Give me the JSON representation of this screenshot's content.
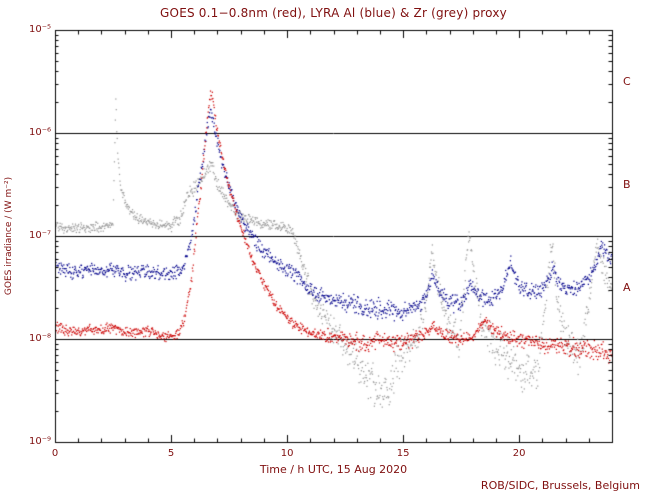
{
  "credit": "ROB/SIDC, Brussels, Belgium",
  "colors": {
    "text": "#801010",
    "frame": "#000000",
    "background": "#ffffff",
    "goes_red": "#cc0000",
    "lyra_al_blue": "#00008b",
    "lyra_zr_grey": "#9b9b9b"
  },
  "chart_data": {
    "type": "scatter",
    "title": "GOES 0.1−0.8nm (red), LYRA Al (blue) & Zr (grey) proxy",
    "xlabel": "Time / h UTC, 15 Aug 2020",
    "ylabel": "GOES irradiance / (W m⁻²)",
    "x_range": [
      0,
      24
    ],
    "x_major_ticks": [
      0,
      5,
      10,
      15,
      20
    ],
    "x_minor_step_hours": 1,
    "y_log_range": [
      -9,
      -5
    ],
    "y_ticks": [
      {
        "exp": -5,
        "label": "10⁻⁵"
      },
      {
        "exp": -6,
        "label": "10⁻⁶"
      },
      {
        "exp": -7,
        "label": "10⁻⁷"
      },
      {
        "exp": -8,
        "label": "10⁻⁸"
      },
      {
        "exp": -9,
        "label": "10⁻⁹"
      }
    ],
    "class_lines_exponents": [
      -6,
      -7,
      -8
    ],
    "class_labels": [
      {
        "label": "C",
        "center_exp": -5.5
      },
      {
        "label": "B",
        "center_exp": -6.5
      },
      {
        "label": "A",
        "center_exp": -7.5
      }
    ],
    "grid": "off",
    "legend_position": "none",
    "sample_step_hours": 0.02,
    "series": [
      {
        "name": "GOES 0.1-0.8nm",
        "color": "#cc0000",
        "default_noise_dex": 0.05,
        "points": [
          [
            0,
            1.3e-08
          ],
          [
            0.5,
            1.2e-08
          ],
          [
            1,
            1.15e-08
          ],
          [
            1.5,
            1.25e-08
          ],
          [
            2,
            1.2e-08
          ],
          [
            2.5,
            1.3e-08
          ],
          [
            3,
            1.2e-08
          ],
          [
            3.5,
            1.15e-08
          ],
          [
            4,
            1.2e-08
          ],
          [
            4.5,
            1.1e-08
          ],
          [
            5,
            1.05e-08
          ],
          [
            5.3,
            1.1e-08
          ],
          [
            5.6,
            1.6e-08
          ],
          [
            5.9,
            4e-08
          ],
          [
            6.1,
            1.2e-07
          ],
          [
            6.35,
            4e-07
          ],
          [
            6.55,
            1.3e-06
          ],
          [
            6.7,
            2.4e-06
          ],
          [
            6.8,
            2.2e-06
          ],
          [
            6.95,
            1.2e-06
          ],
          [
            7.2,
            6e-07
          ],
          [
            7.5,
            3e-07
          ],
          [
            7.8,
            1.7e-07
          ],
          [
            8.1,
            1.05e-07
          ],
          [
            8.5,
            6e-08
          ],
          [
            9,
            3.5e-08
          ],
          [
            9.5,
            2.2e-08
          ],
          [
            10,
            1.6e-08
          ],
          [
            10.5,
            1.3e-08
          ],
          [
            11,
            1.15e-08
          ],
          [
            11.5,
            1.1e-08
          ],
          [
            12,
            1.05e-08,
            0.07
          ],
          [
            12.5,
            1e-08,
            0.07
          ],
          [
            13,
            9.5e-09,
            0.08
          ],
          [
            13.5,
            9e-09,
            0.08
          ],
          [
            14,
            1e-08,
            0.08
          ],
          [
            14.5,
            9e-09,
            0.08
          ],
          [
            15,
            9.5e-09,
            0.08
          ],
          [
            15.5,
            1e-08,
            0.07
          ],
          [
            16,
            1.15e-08
          ],
          [
            16.3,
            1.35e-08
          ],
          [
            16.7,
            1.1e-08
          ],
          [
            17,
            1.05e-08,
            0.07
          ],
          [
            17.5,
            1e-08,
            0.07
          ],
          [
            18,
            1.05e-08
          ],
          [
            18.5,
            1.5e-08
          ],
          [
            18.8,
            1.3e-08
          ],
          [
            19,
            1.2e-08
          ],
          [
            19.5,
            1.05e-08,
            0.07
          ],
          [
            20,
            1e-08,
            0.07
          ],
          [
            20.5,
            9.5e-09,
            0.08
          ],
          [
            21,
            9e-09,
            0.08
          ],
          [
            21.5,
            8.5e-09,
            0.08
          ],
          [
            22,
            8.5e-09,
            0.09
          ],
          [
            22.5,
            8e-09,
            0.09
          ],
          [
            23,
            8e-09,
            0.09
          ],
          [
            23.5,
            7.5e-09,
            0.09
          ],
          [
            23.95,
            7e-09,
            0.09
          ]
        ]
      },
      {
        "name": "LYRA Al proxy",
        "color": "#00008b",
        "default_noise_dex": 0.07,
        "points": [
          [
            0,
            5e-08
          ],
          [
            0.5,
            4.6e-08
          ],
          [
            1,
            4.4e-08
          ],
          [
            1.5,
            4.8e-08
          ],
          [
            2,
            4.5e-08
          ],
          [
            2.5,
            4.7e-08
          ],
          [
            3,
            4.3e-08
          ],
          [
            3.5,
            4.4e-08
          ],
          [
            4,
            4.6e-08
          ],
          [
            4.5,
            4.3e-08
          ],
          [
            5,
            4.2e-08
          ],
          [
            5.3,
            4.4e-08
          ],
          [
            5.6,
            5.5e-08
          ],
          [
            5.9,
            1e-07
          ],
          [
            6.1,
            2.2e-07
          ],
          [
            6.35,
            5e-07
          ],
          [
            6.55,
            1.1e-06
          ],
          [
            6.7,
            1.7e-06
          ],
          [
            6.8,
            1.5e-06
          ],
          [
            6.95,
            9e-07
          ],
          [
            7.2,
            5e-07
          ],
          [
            7.5,
            3e-07
          ],
          [
            7.8,
            2e-07
          ],
          [
            8.1,
            1.4e-07
          ],
          [
            8.5,
            9.5e-08
          ],
          [
            9,
            7e-08
          ],
          [
            9.5,
            5.5e-08
          ],
          [
            10,
            4.8e-08
          ],
          [
            10.4,
            4.2e-08
          ],
          [
            10.8,
            3.2e-08
          ],
          [
            11.2,
            2.8e-08
          ],
          [
            11.8,
            2.5e-08
          ],
          [
            12.4,
            2.3e-08,
            0.09
          ],
          [
            13,
            2.1e-08,
            0.09
          ],
          [
            13.6,
            2e-08,
            0.1
          ],
          [
            14.2,
            1.9e-08,
            0.1
          ],
          [
            14.8,
            1.8e-08,
            0.1
          ],
          [
            15.4,
            2e-08,
            0.09
          ],
          [
            16,
            2.5e-08
          ],
          [
            16.25,
            4.5e-08
          ],
          [
            16.5,
            3e-08
          ],
          [
            17,
            2.3e-08,
            0.09
          ],
          [
            17.5,
            2.2e-08,
            0.09
          ],
          [
            17.9,
            3.5e-08
          ],
          [
            18.2,
            2.6e-08
          ],
          [
            18.6,
            2.4e-08,
            0.09
          ],
          [
            19.2,
            2.8e-08
          ],
          [
            19.65,
            5.5e-08
          ],
          [
            19.9,
            3.5e-08
          ],
          [
            20.4,
            2.9e-08,
            0.09
          ],
          [
            21,
            3e-08
          ],
          [
            21.45,
            5e-08
          ],
          [
            21.8,
            3.2e-08
          ],
          [
            22.3,
            3e-08,
            0.09
          ],
          [
            22.8,
            3.5e-08
          ],
          [
            23.2,
            4.5e-08
          ],
          [
            23.55,
            8e-08
          ],
          [
            23.8,
            6.5e-08
          ],
          [
            23.95,
            6e-08
          ]
        ]
      },
      {
        "name": "LYRA Zr proxy",
        "color": "#9b9b9b",
        "default_noise_dex": 0.09,
        "points": [
          [
            0,
            1.25e-07,
            0.05
          ],
          [
            0.5,
            1.2e-07,
            0.05
          ],
          [
            1,
            1.18e-07,
            0.05
          ],
          [
            1.5,
            1.22e-07,
            0.05
          ],
          [
            2,
            1.2e-07,
            0.05
          ],
          [
            2.5,
            1.3e-07,
            0.05
          ],
          [
            2.62,
            2.3e-06,
            0.06
          ],
          [
            2.7,
            6e-07,
            0.06
          ],
          [
            2.85,
            3e-07,
            0.06
          ],
          [
            3.1,
            1.9e-07,
            0.05
          ],
          [
            3.5,
            1.5e-07,
            0.05
          ],
          [
            4,
            1.35e-07,
            0.05
          ],
          [
            4.5,
            1.3e-07,
            0.05
          ],
          [
            5,
            1.25e-07,
            0.05
          ],
          [
            5.4,
            1.5e-07,
            0.06
          ],
          [
            5.7,
            2.4e-07,
            0.07
          ],
          [
            6,
            3e-07,
            0.07
          ],
          [
            6.3,
            3.4e-07,
            0.07
          ],
          [
            6.6,
            4.5e-07,
            0.06
          ],
          [
            6.75,
            5e-07,
            0.06
          ],
          [
            7,
            3.2e-07,
            0.06
          ],
          [
            7.4,
            2.2e-07,
            0.06
          ],
          [
            7.8,
            1.7e-07,
            0.06
          ],
          [
            8.3,
            1.45e-07,
            0.05
          ],
          [
            9,
            1.3e-07,
            0.05
          ],
          [
            9.6,
            1.25e-07,
            0.05
          ],
          [
            10.2,
            1.15e-07,
            0.05
          ],
          [
            10.5,
            7e-08,
            0.08
          ],
          [
            10.8,
            4e-08,
            0.1
          ],
          [
            11.2,
            2.4e-08,
            0.12
          ],
          [
            11.6,
            1.6e-08,
            0.12
          ],
          [
            12,
            1.2e-08,
            0.14
          ],
          [
            12.5,
            8.5e-09,
            0.16
          ],
          [
            13,
            6e-09,
            0.18
          ],
          [
            13.5,
            4e-09,
            0.2
          ],
          [
            14,
            2.8e-09,
            0.22
          ],
          [
            14.4,
            3.5e-09,
            0.22
          ],
          [
            14.8,
            6e-09,
            0.2
          ],
          [
            15.2,
            8e-09,
            0.18
          ],
          [
            15.6,
            1e-08,
            0.16
          ],
          [
            16,
            2.2e-08,
            0.12
          ],
          [
            16.25,
            7.5e-08,
            0.1
          ],
          [
            16.5,
            3.5e-08,
            0.12
          ],
          [
            16.9,
            1.6e-08,
            0.14
          ],
          [
            17.4,
            9e-09,
            0.16
          ],
          [
            17.85,
            1.1e-07,
            0.08
          ],
          [
            18.05,
            4e-08,
            0.12
          ],
          [
            18.4,
            1.4e-08,
            0.14
          ],
          [
            18.8,
            9e-09,
            0.16
          ],
          [
            19.3,
            7e-09,
            0.18
          ],
          [
            19.8,
            5.5e-09,
            0.18
          ],
          [
            20.3,
            4.5e-09,
            0.2
          ],
          [
            20.8,
            5e-09,
            0.2
          ],
          [
            21.4,
            8.5e-08,
            0.1
          ],
          [
            21.7,
            2e-08,
            0.14
          ],
          [
            22.1,
            9e-09,
            0.16
          ],
          [
            22.6,
            6.5e-09,
            0.18
          ],
          [
            23,
            2.2e-08,
            0.12
          ],
          [
            23.35,
            8.5e-08,
            0.1
          ],
          [
            23.6,
            5e-08,
            0.1
          ],
          [
            23.85,
            3.5e-08,
            0.12
          ],
          [
            23.95,
            3e-08,
            0.12
          ]
        ]
      }
    ]
  }
}
